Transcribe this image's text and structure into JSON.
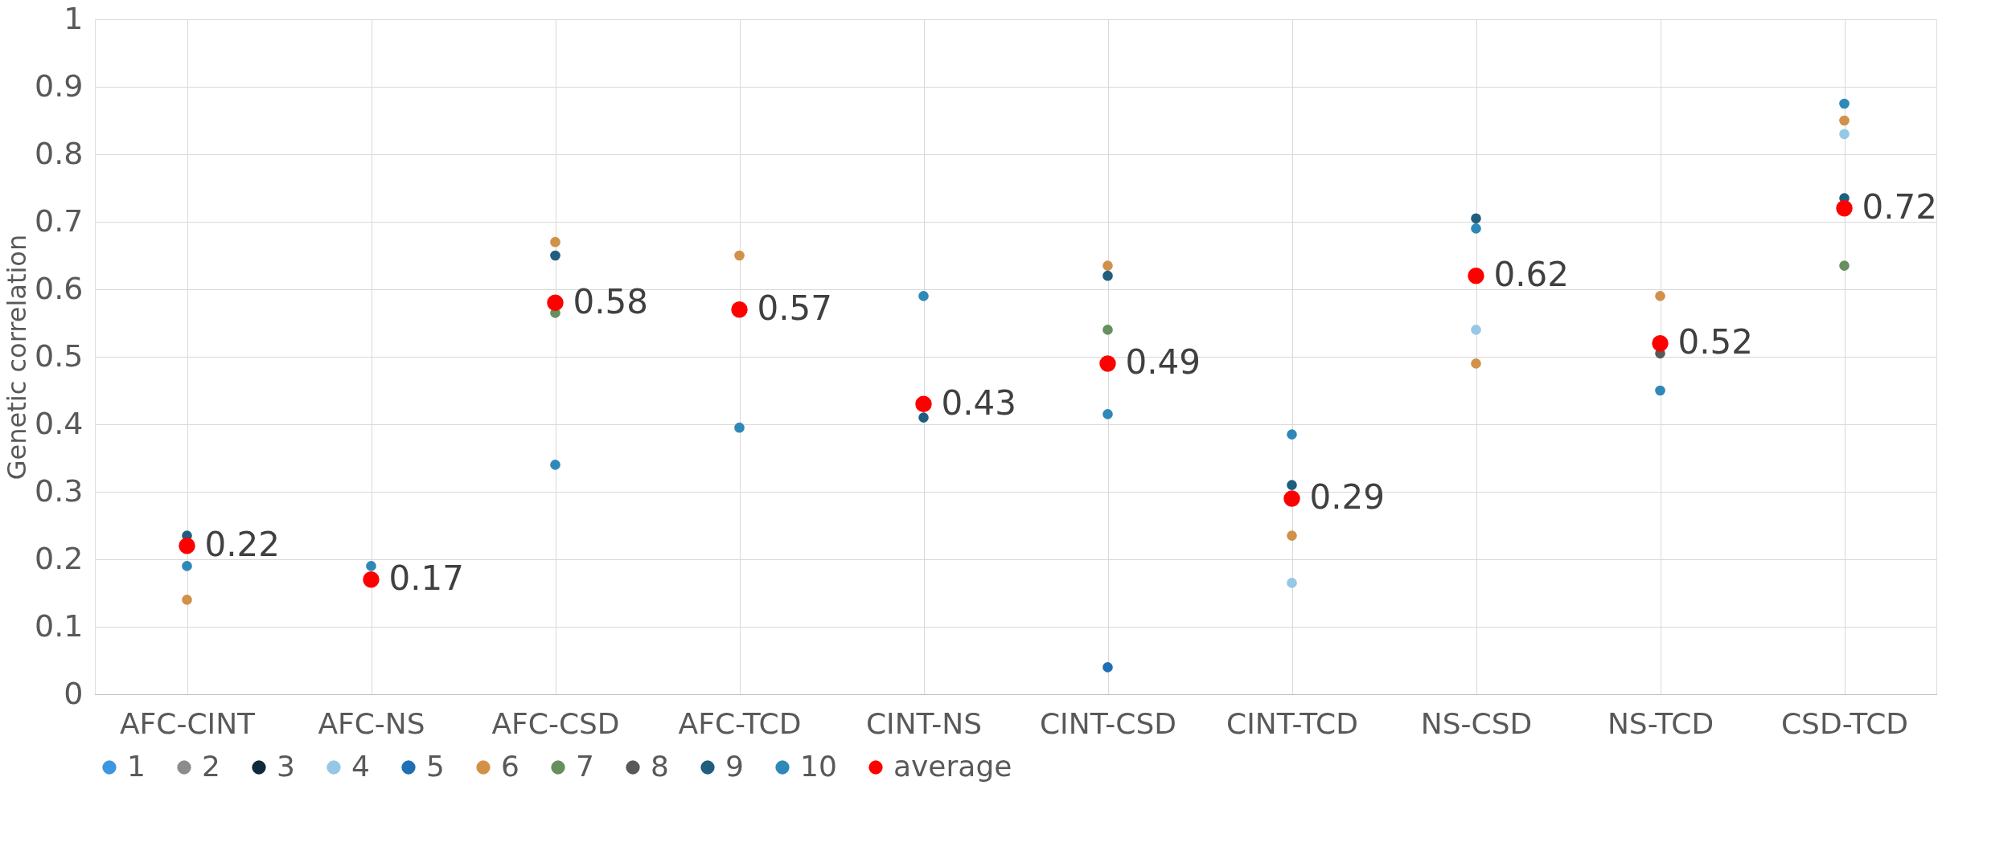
{
  "chart_data": {
    "type": "scatter",
    "ylabel": "Genetic correlation",
    "categories": [
      "AFC-CINT",
      "AFC-NS",
      "AFC-CSD",
      "AFC-TCD",
      "CINT-NS",
      "CINT-CSD",
      "CINT-TCD",
      "NS-CSD",
      "NS-TCD",
      "CSD-TCD"
    ],
    "ylim": [
      0,
      1
    ],
    "yticks": [
      0,
      0.1,
      0.2,
      0.3,
      0.4,
      0.5,
      0.6,
      0.7,
      0.8,
      0.9,
      1
    ],
    "grid": true,
    "legend": "bottom",
    "marker": "circle",
    "series": [
      {
        "name": "1",
        "color": "#3c96e0",
        "values": [
          null,
          null,
          null,
          null,
          null,
          null,
          null,
          null,
          null,
          null
        ]
      },
      {
        "name": "2",
        "color": "#8c8c8c",
        "values": [
          null,
          null,
          null,
          null,
          null,
          null,
          null,
          null,
          null,
          null
        ]
      },
      {
        "name": "3",
        "color": "#0f2a3a",
        "values": [
          null,
          null,
          null,
          null,
          null,
          null,
          null,
          null,
          null,
          null
        ]
      },
      {
        "name": "4",
        "color": "#94c8e6",
        "values": [
          null,
          null,
          null,
          null,
          null,
          null,
          0.165,
          0.54,
          null,
          0.83
        ]
      },
      {
        "name": "5",
        "color": "#1f6fb5",
        "values": [
          null,
          null,
          null,
          null,
          null,
          0.04,
          null,
          null,
          null,
          null
        ]
      },
      {
        "name": "6",
        "color": "#d1914b",
        "values": [
          0.14,
          null,
          0.67,
          0.65,
          null,
          0.635,
          0.235,
          0.49,
          0.59,
          0.85
        ]
      },
      {
        "name": "7",
        "color": "#678f5f",
        "values": [
          null,
          null,
          0.565,
          null,
          null,
          0.54,
          null,
          null,
          null,
          0.635
        ]
      },
      {
        "name": "8",
        "color": "#595959",
        "values": [
          null,
          null,
          null,
          null,
          null,
          null,
          null,
          null,
          0.505,
          null
        ]
      },
      {
        "name": "9",
        "color": "#215e7e",
        "values": [
          0.235,
          null,
          0.65,
          null,
          0.41,
          0.62,
          0.31,
          0.705,
          null,
          0.735
        ]
      },
      {
        "name": "10",
        "color": "#2e89b8",
        "values": [
          0.19,
          0.19,
          0.34,
          0.395,
          0.59,
          0.415,
          0.385,
          0.69,
          0.45,
          0.875
        ]
      },
      {
        "name": "average",
        "color": "#ff0000",
        "values": [
          0.22,
          0.17,
          0.58,
          0.57,
          0.43,
          0.49,
          0.29,
          0.62,
          0.52,
          0.72
        ],
        "value_labels": [
          "0.22",
          "0.17",
          "0.58",
          "0.57",
          "0.43",
          "0.49",
          "0.29",
          "0.62",
          "0.52",
          "0.72"
        ]
      }
    ]
  }
}
